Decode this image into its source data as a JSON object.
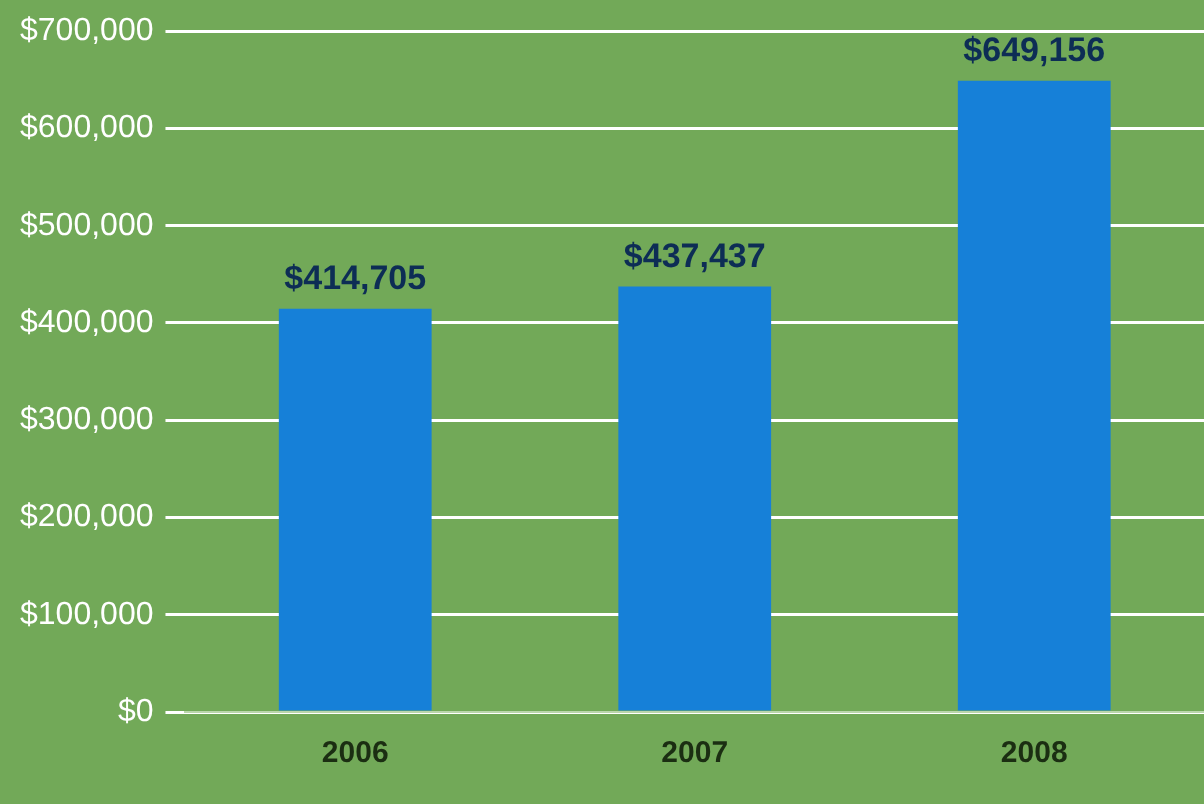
{
  "chart_data": {
    "type": "bar",
    "categories": [
      "2006",
      "2007",
      "2008"
    ],
    "values": [
      414705,
      437437,
      649156
    ],
    "color": "#1680d8",
    "value_labels": [
      "$414,705",
      "$437,437",
      "$649,156"
    ],
    "ylim": [
      0,
      700000
    ],
    "yticks": [
      {
        "value": 0,
        "label": "$0"
      },
      {
        "value": 100000,
        "label": "$100,000"
      },
      {
        "value": 200000,
        "label": "$200,000"
      },
      {
        "value": 300000,
        "label": "$300,000"
      },
      {
        "value": 400000,
        "label": "$400,000"
      },
      {
        "value": 500000,
        "label": "$500,000"
      },
      {
        "value": 600000,
        "label": "$600,000"
      },
      {
        "value": 700000,
        "label": "$700,000"
      }
    ],
    "grid": "y",
    "legend": false
  }
}
